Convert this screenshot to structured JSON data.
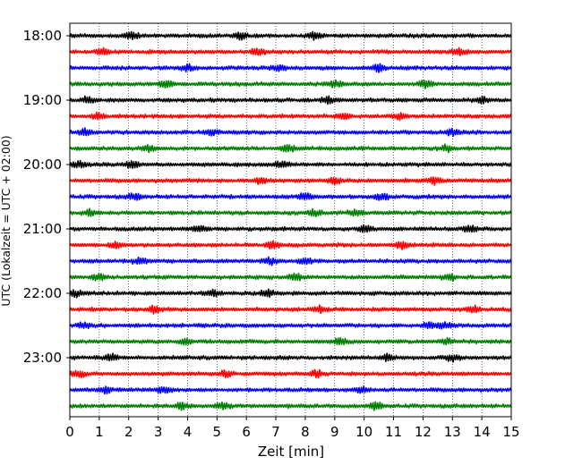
{
  "chart_data": {
    "type": "line",
    "title": "",
    "xlabel": "Zeit  [min]",
    "ylabel": "UTC (Lokalzeit = UTC + 02:00)",
    "xlim": [
      0,
      15
    ],
    "x_ticks": [
      "0",
      "1",
      "2",
      "3",
      "4",
      "5",
      "6",
      "7",
      "8",
      "9",
      "10",
      "11",
      "12",
      "13",
      "14",
      "15"
    ],
    "y_ticks": [
      "18:00",
      "19:00",
      "20:00",
      "21:00",
      "22:00",
      "23:00"
    ],
    "grid": "vertical-dotted",
    "trace_interval_minutes": 15,
    "trace_colors": [
      "#000000",
      "#ff0000",
      "#0000ff",
      "#008000"
    ],
    "series": [
      {
        "start": "18:00",
        "color": "#000000",
        "bursts_min": [
          2.1,
          5.8,
          8.3
        ]
      },
      {
        "start": "18:15",
        "color": "#ff0000",
        "bursts_min": [
          1.1,
          6.4,
          13.2
        ]
      },
      {
        "start": "18:30",
        "color": "#0000ff",
        "bursts_min": [
          4.0,
          7.1,
          10.5
        ]
      },
      {
        "start": "18:45",
        "color": "#008000",
        "bursts_min": [
          3.3,
          9.0,
          12.1
        ]
      },
      {
        "start": "19:00",
        "color": "#000000",
        "bursts_min": [
          0.6,
          8.8,
          14.0
        ]
      },
      {
        "start": "19:15",
        "color": "#ff0000",
        "bursts_min": [
          1.0,
          9.3,
          11.2
        ]
      },
      {
        "start": "19:30",
        "color": "#0000ff",
        "bursts_min": [
          0.5,
          4.8,
          13.0
        ]
      },
      {
        "start": "19:45",
        "color": "#008000",
        "bursts_min": [
          2.7,
          7.4,
          12.8
        ]
      },
      {
        "start": "20:00",
        "color": "#000000",
        "bursts_min": [
          0.3,
          2.1,
          7.2
        ]
      },
      {
        "start": "20:15",
        "color": "#ff0000",
        "bursts_min": [
          6.5,
          9.0,
          12.4
        ]
      },
      {
        "start": "20:30",
        "color": "#0000ff",
        "bursts_min": [
          2.2,
          8.0,
          10.6
        ]
      },
      {
        "start": "20:45",
        "color": "#008000",
        "bursts_min": [
          0.7,
          8.3,
          9.7
        ]
      },
      {
        "start": "21:00",
        "color": "#000000",
        "bursts_min": [
          4.4,
          10.0,
          13.6
        ]
      },
      {
        "start": "21:15",
        "color": "#ff0000",
        "bursts_min": [
          1.6,
          6.9,
          11.3
        ]
      },
      {
        "start": "21:30",
        "color": "#0000ff",
        "bursts_min": [
          2.4,
          6.8,
          8.0
        ]
      },
      {
        "start": "21:45",
        "color": "#008000",
        "bursts_min": [
          1.0,
          7.7,
          12.9
        ]
      },
      {
        "start": "22:00",
        "color": "#000000",
        "bursts_min": [
          0.2,
          4.9,
          6.7
        ]
      },
      {
        "start": "22:15",
        "color": "#ff0000",
        "bursts_min": [
          2.9,
          8.5,
          13.7
        ]
      },
      {
        "start": "22:30",
        "color": "#0000ff",
        "bursts_min": [
          0.5,
          12.2,
          12.7
        ]
      },
      {
        "start": "22:45",
        "color": "#008000",
        "bursts_min": [
          3.9,
          9.2,
          12.8
        ]
      },
      {
        "start": "23:00",
        "color": "#000000",
        "bursts_min": [
          1.4,
          10.8,
          13.0
        ]
      },
      {
        "start": "23:15",
        "color": "#ff0000",
        "bursts_min": [
          0.3,
          5.3,
          8.4
        ]
      },
      {
        "start": "23:30",
        "color": "#0000ff",
        "bursts_min": [
          1.2,
          3.2,
          9.9
        ]
      },
      {
        "start": "23:45",
        "color": "#008000",
        "bursts_min": [
          3.8,
          5.2,
          10.4
        ]
      }
    ]
  }
}
